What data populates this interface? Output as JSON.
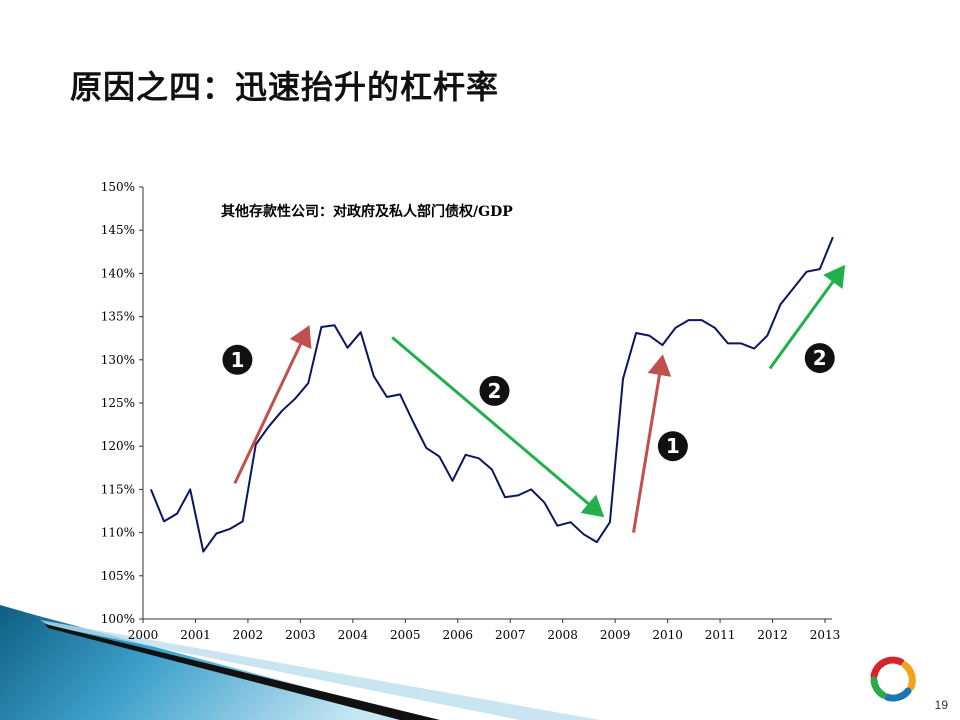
{
  "slide": {
    "title": "原因之四：迅速抬升的杠杆率",
    "page_number": "19"
  },
  "colors": {
    "line": "#0b1560",
    "up_arrow": "#c0504d",
    "down_arrow": "#21b04b",
    "badge": "#111111",
    "axis": "#333333",
    "banner_dark": "#0e5e82",
    "banner_light": "#7fc5e3",
    "logo": [
      "#d6242b",
      "#f3a21b",
      "#2aa84a",
      "#1d75b6"
    ]
  },
  "chart_data": {
    "type": "line",
    "title": "其他存款性公司：对政府及私人部门债权/GDP",
    "xlabel": "",
    "ylabel": "",
    "ylim": [
      1.0,
      1.5
    ],
    "yticks": [
      "100%",
      "105%",
      "110%",
      "115%",
      "120%",
      "125%",
      "130%",
      "135%",
      "140%",
      "145%",
      "150%"
    ],
    "xlim": [
      2000,
      2013.15
    ],
    "xticks": [
      "2000",
      "2001",
      "2002",
      "2003",
      "2004",
      "2005",
      "2006",
      "2007",
      "2008",
      "2009",
      "2010",
      "2011",
      "2012",
      "2013"
    ],
    "grid": false,
    "legend": "none",
    "series": [
      {
        "x": [
          2000.15,
          2000.4,
          2000.65,
          2000.9,
          2001.15,
          2001.4,
          2001.65,
          2001.9,
          2002.15,
          2002.4,
          2002.65,
          2002.9,
          2003.15,
          2003.4,
          2003.65,
          2003.9,
          2004.15,
          2004.4,
          2004.65,
          2004.9,
          2005.15,
          2005.4,
          2005.65,
          2005.9,
          2006.15,
          2006.4,
          2006.65,
          2006.9,
          2007.15,
          2007.4,
          2007.65,
          2007.9,
          2008.15,
          2008.4,
          2008.65,
          2008.9,
          2009.15,
          2009.4,
          2009.65,
          2009.9,
          2010.15,
          2010.4,
          2010.65,
          2010.9,
          2011.15,
          2011.4,
          2011.65,
          2011.9,
          2012.15,
          2012.4,
          2012.65,
          2012.9,
          2013.15
        ],
        "values": [
          1.15,
          1.113,
          1.122,
          1.15,
          1.078,
          1.099,
          1.104,
          1.113,
          1.202,
          1.223,
          1.241,
          1.255,
          1.273,
          1.338,
          1.34,
          1.314,
          1.332,
          1.281,
          1.257,
          1.26,
          1.228,
          1.198,
          1.188,
          1.16,
          1.19,
          1.186,
          1.173,
          1.141,
          1.143,
          1.15,
          1.135,
          1.108,
          1.112,
          1.098,
          1.089,
          1.112,
          1.278,
          1.331,
          1.328,
          1.317,
          1.337,
          1.346,
          1.346,
          1.337,
          1.319,
          1.319,
          1.313,
          1.328,
          1.364,
          1.383,
          1.402,
          1.405,
          1.442
        ]
      }
    ],
    "annotations": [
      {
        "kind": "arrow",
        "trend": "up",
        "from": [
          2001.75,
          1.157
        ],
        "to": [
          2003.15,
          1.337
        ]
      },
      {
        "kind": "arrow",
        "trend": "down",
        "from": [
          2004.75,
          1.326
        ],
        "to": [
          2008.75,
          1.12
        ]
      },
      {
        "kind": "arrow",
        "trend": "up",
        "from": [
          2009.35,
          1.1
        ],
        "to": [
          2009.9,
          1.303
        ]
      },
      {
        "kind": "arrow",
        "trend": "up",
        "from": [
          2011.95,
          1.29
        ],
        "to": [
          2013.35,
          1.407
        ]
      },
      {
        "kind": "badge",
        "label": "1",
        "at": [
          2001.8,
          1.3
        ]
      },
      {
        "kind": "badge",
        "label": "2",
        "at": [
          2006.7,
          1.264
        ]
      },
      {
        "kind": "badge",
        "label": "1",
        "at": [
          2010.1,
          1.2
        ]
      },
      {
        "kind": "badge",
        "label": "2",
        "at": [
          2012.9,
          1.302
        ]
      }
    ]
  }
}
